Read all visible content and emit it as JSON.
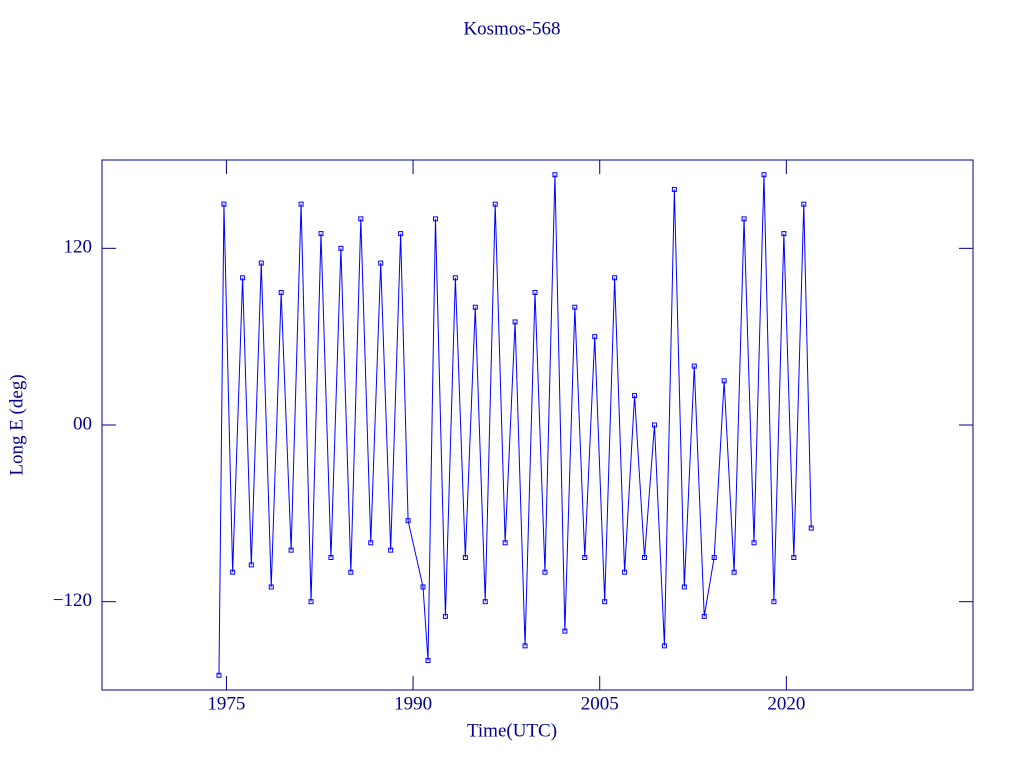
{
  "chart_data": {
    "type": "line",
    "title": "Kosmos-568",
    "x_label": "Time(UTC)",
    "y_label": "Long E (deg)",
    "xlim": [
      1965,
      2035
    ],
    "xticks": [
      1975,
      1990,
      2005,
      2020
    ],
    "ylim": [
      -180,
      180
    ],
    "yticks": [
      {
        "value": -120,
        "label": "−120"
      },
      {
        "value": 0,
        "label": "00"
      },
      120
    ],
    "x": [
      1974.4,
      1974.8,
      1975.5,
      1976.3,
      1977.0,
      1977.8,
      1978.6,
      1979.4,
      1980.2,
      1981.0,
      1981.8,
      1982.6,
      1983.4,
      1984.2,
      1985.0,
      1985.8,
      1986.6,
      1987.4,
      1988.2,
      1989.0,
      1989.6,
      1990.8,
      1991.2,
      1991.8,
      1992.6,
      1993.4,
      1994.2,
      1995.0,
      1995.8,
      1996.6,
      1997.4,
      1998.2,
      1999.0,
      1999.8,
      2000.6,
      2001.4,
      2002.2,
      2003.0,
      2003.8,
      2004.6,
      2005.4,
      2006.2,
      2007.0,
      2007.8,
      2008.6,
      2009.4,
      2010.2,
      2011.0,
      2011.8,
      2012.6,
      2013.4,
      2014.2,
      2015.0,
      2015.8,
      2016.6,
      2017.4,
      2018.2,
      2019.0,
      2019.8,
      2020.6,
      2021.4,
      2022.0
    ],
    "series": [
      {
        "color": "#0000ff",
        "values": [
          -170,
          150,
          -100,
          100,
          -95,
          110,
          -110,
          90,
          -85,
          150,
          -120,
          130,
          -90,
          120,
          -100,
          140,
          -80,
          110,
          -85,
          130,
          -65,
          -110,
          -160,
          140,
          -130,
          100,
          -90,
          80,
          -120,
          150,
          -80,
          70,
          -150,
          90,
          -100,
          170,
          -140,
          80,
          -90,
          60,
          -120,
          100,
          -100,
          20,
          -90,
          0,
          -150,
          160,
          -110,
          40,
          -130,
          -90,
          30,
          -100,
          140,
          -80,
          170,
          -120,
          130,
          -90,
          150,
          -70
        ]
      }
    ]
  }
}
